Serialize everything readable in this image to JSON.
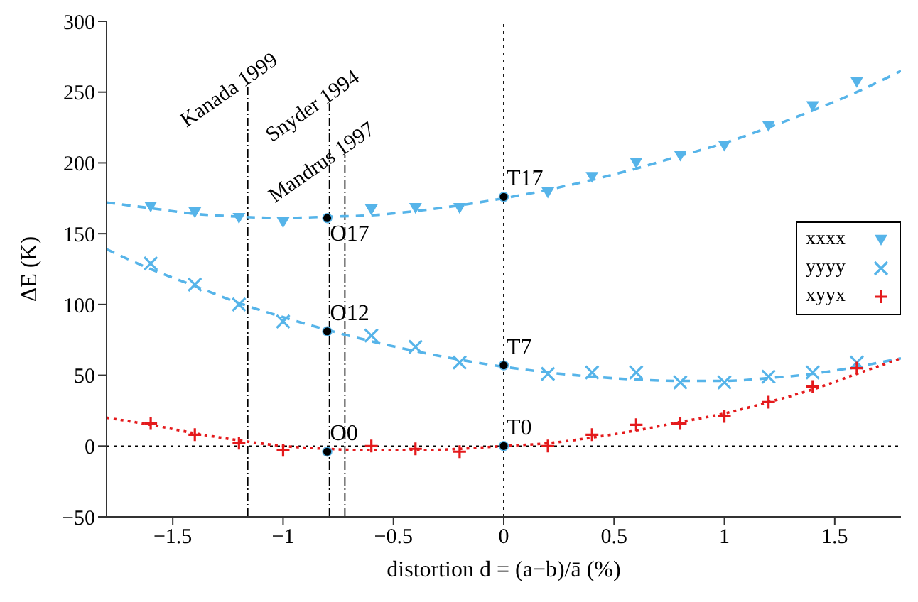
{
  "chart_data": {
    "type": "scatter",
    "xlabel": "distortion d = (a−b)/ā (%)",
    "ylabel": "ΔE (K)",
    "xlim": [
      -1.8,
      1.8
    ],
    "ylim": [
      -50,
      300
    ],
    "xticks": [
      {
        "value": -1.5,
        "label": "−1.5"
      },
      {
        "value": -1,
        "label": "−1"
      },
      {
        "value": -0.5,
        "label": "−0.5"
      },
      0,
      0.5,
      1,
      1.5
    ],
    "yticks": [
      {
        "value": -50,
        "label": "−50"
      },
      0,
      50,
      100,
      150,
      200,
      250,
      300
    ],
    "legend": "right",
    "series": [
      {
        "name": "xxxx",
        "color": "#56b4e9",
        "marker": "triangle",
        "x": [
          -1.6,
          -1.4,
          -1.2,
          -1.0,
          -0.6,
          -0.4,
          -0.2,
          0.2,
          0.4,
          0.6,
          0.8,
          1.0,
          1.2,
          1.4,
          1.6
        ],
        "values": [
          169,
          165,
          161,
          158,
          167,
          168,
          168,
          179,
          190,
          200,
          205,
          212,
          226,
          240,
          257
        ]
      },
      {
        "name": "yyyy",
        "color": "#56b4e9",
        "marker": "cross",
        "x": [
          -1.6,
          -1.4,
          -1.2,
          -1.0,
          -0.6,
          -0.4,
          -0.2,
          0.2,
          0.4,
          0.6,
          0.8,
          1.0,
          1.2,
          1.4,
          1.6
        ],
        "values": [
          129,
          114,
          100,
          88,
          78,
          70,
          59,
          51,
          52,
          52,
          45,
          45,
          49,
          52,
          59
        ]
      },
      {
        "name": "xyyx",
        "color": "#e41a1c",
        "marker": "plus",
        "x": [
          -1.6,
          -1.4,
          -1.2,
          -1.0,
          -0.6,
          -0.4,
          -0.2,
          0.2,
          0.4,
          0.6,
          0.8,
          1.0,
          1.2,
          1.4,
          1.6
        ],
        "values": [
          16,
          8,
          2,
          -3,
          0,
          -2,
          -4,
          0,
          8,
          15,
          16,
          21,
          31,
          42,
          55
        ]
      },
      {
        "type": "line",
        "color": "#56b4e9",
        "line_style": "dashed",
        "marker": "none",
        "x": [
          -1.8,
          -1.6,
          -1.4,
          -1.2,
          -1.0,
          -0.8,
          -0.6,
          -0.4,
          -0.2,
          0,
          0.2,
          0.4,
          0.6,
          0.8,
          1.0,
          1.2,
          1.4,
          1.6,
          1.8
        ],
        "values": [
          172,
          168,
          164,
          162,
          161,
          162,
          163,
          166,
          170,
          175,
          181,
          188,
          196,
          205,
          214,
          225,
          237,
          250,
          265
        ]
      },
      {
        "type": "line",
        "color": "#56b4e9",
        "line_style": "dashed",
        "marker": "none",
        "x": [
          -1.8,
          -1.6,
          -1.4,
          -1.2,
          -1.0,
          -0.8,
          -0.6,
          -0.4,
          -0.2,
          0,
          0.2,
          0.4,
          0.6,
          0.8,
          1.0,
          1.2,
          1.4,
          1.6,
          1.8
        ],
        "values": [
          139,
          125,
          113,
          101,
          91,
          82,
          74,
          67,
          61,
          56,
          52,
          49,
          47,
          46,
          46,
          48,
          51,
          56,
          62
        ]
      },
      {
        "type": "line",
        "color": "#e41a1c",
        "line_style": "dotted",
        "marker": "none",
        "x": [
          -1.8,
          -1.6,
          -1.4,
          -1.2,
          -1.0,
          -0.8,
          -0.6,
          -0.4,
          -0.2,
          0,
          0.2,
          0.4,
          0.6,
          0.8,
          1.0,
          1.2,
          1.4,
          1.6,
          1.8
        ],
        "values": [
          20,
          15,
          9,
          4,
          0,
          -2,
          -3,
          -3,
          -2,
          0,
          2,
          6,
          11,
          17,
          23,
          31,
          40,
          51,
          62
        ]
      },
      {
        "color": "#000000",
        "marker": "circle",
        "x": [
          -0.8,
          -0.8,
          -0.8,
          0,
          0,
          0
        ],
        "values": [
          161,
          81,
          -4,
          176,
          57,
          0
        ],
        "value_labels": [
          "O17",
          "O12",
          "O0",
          "T17",
          "T7",
          "T0"
        ]
      }
    ],
    "ref_lines": [
      {
        "axis": "x",
        "value": -1.16,
        "label": "Kanada 1999",
        "line_style": "dashdot",
        "color": "#000000"
      },
      {
        "axis": "x",
        "value": -0.79,
        "label": "Snyder 1994",
        "line_style": "dashdot",
        "color": "#000000"
      },
      {
        "axis": "x",
        "value": -0.72,
        "label": "Mandrus 1997",
        "line_style": "dashdot",
        "color": "#000000"
      },
      {
        "axis": "x",
        "value": 0,
        "line_style": "dotted",
        "color": "#000000"
      },
      {
        "axis": "y",
        "value": 0,
        "line_style": "dotted",
        "color": "#000000"
      }
    ]
  }
}
